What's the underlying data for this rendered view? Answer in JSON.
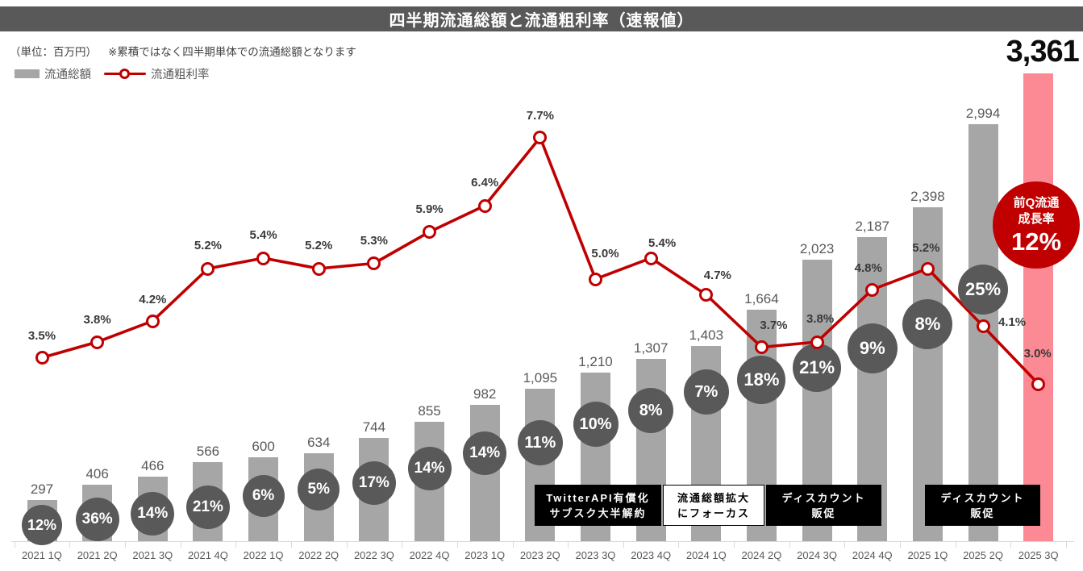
{
  "header": {
    "title": "四半期流通総額と流通粗利率（速報値）"
  },
  "notes": {
    "unit": "（単位：百万円）",
    "caveat": "※累積ではなく四半期単体での流通総額となります"
  },
  "legend": {
    "bar_label": "流通総額",
    "line_label": "流通粗利率"
  },
  "colors": {
    "banner": "#595959",
    "bar": "#a6a6a6",
    "bar_highlight": "#fb8a94",
    "line": "#c00000",
    "growth_circle": "#595959",
    "badge": "#c00000",
    "axis": "#d9d9d9"
  },
  "chart_data": {
    "type": "bar",
    "subtype": "bar+line combo",
    "grid": false,
    "legend_position": "top-left",
    "categories": [
      "2021 1Q",
      "2021 2Q",
      "2021 3Q",
      "2021 4Q",
      "2022 1Q",
      "2022 2Q",
      "2022 3Q",
      "2022 4Q",
      "2023 1Q",
      "2023 2Q",
      "2023 3Q",
      "2023 4Q",
      "2024 1Q",
      "2024 2Q",
      "2024 3Q",
      "2024 4Q",
      "2025 1Q",
      "2025 2Q",
      "2025 3Q"
    ],
    "series": [
      {
        "name": "流通総額",
        "type": "bar",
        "unit": "百万円",
        "values": [
          297,
          406,
          466,
          566,
          600,
          634,
          744,
          855,
          982,
          1095,
          1210,
          1307,
          1403,
          1664,
          2023,
          2187,
          2398,
          2994,
          3361
        ],
        "labels": [
          "297",
          "406",
          "466",
          "566",
          "600",
          "634",
          "744",
          "855",
          "982",
          "1,095",
          "1,210",
          "1,307",
          "1,403",
          "1,664",
          "2,023",
          "2,187",
          "2,398",
          "2,994",
          "3,361"
        ],
        "ylim": [
          0,
          3400
        ]
      },
      {
        "name": "流通粗利率",
        "type": "line",
        "values": [
          3.5,
          3.8,
          4.2,
          5.2,
          5.4,
          5.2,
          5.3,
          5.9,
          6.4,
          7.7,
          5.0,
          5.4,
          4.7,
          3.7,
          3.8,
          4.8,
          5.2,
          4.1,
          3.0
        ],
        "labels": [
          "3.5%",
          "3.8%",
          "4.2%",
          "5.2%",
          "5.4%",
          "5.2%",
          "5.3%",
          "5.9%",
          "6.4%",
          "7.7%",
          "5.0%",
          "5.4%",
          "4.7%",
          "3.7%",
          "3.8%",
          "4.8%",
          "5.2%",
          "4.1%",
          "3.0%"
        ],
        "ylim": [
          0,
          9
        ]
      },
      {
        "name": "前Q比成長率（円内表示）",
        "type": "circle-labels",
        "labels": [
          "12%",
          "36%",
          "14%",
          "21%",
          "6%",
          "5%",
          "17%",
          "14%",
          "14%",
          "11%",
          "10%",
          "8%",
          "7%",
          "18%",
          "21%",
          "9%",
          "8%",
          "25%"
        ]
      }
    ],
    "highlight": {
      "category": "2025 3Q",
      "value_label": "3,361",
      "badge": {
        "line1": "前Q流通",
        "line2": "成長率",
        "value": "12%"
      }
    },
    "annotations": [
      {
        "style": "black",
        "lines": [
          "TwitterAPI有償化",
          "サブスク大半解約"
        ]
      },
      {
        "style": "white",
        "lines": [
          "流通総額拡大",
          "にフォーカス"
        ]
      },
      {
        "style": "black",
        "lines": [
          "ディスカウント",
          "販促"
        ]
      },
      {
        "style": "black",
        "lines": [
          "ディスカウント",
          "販促"
        ]
      }
    ]
  }
}
